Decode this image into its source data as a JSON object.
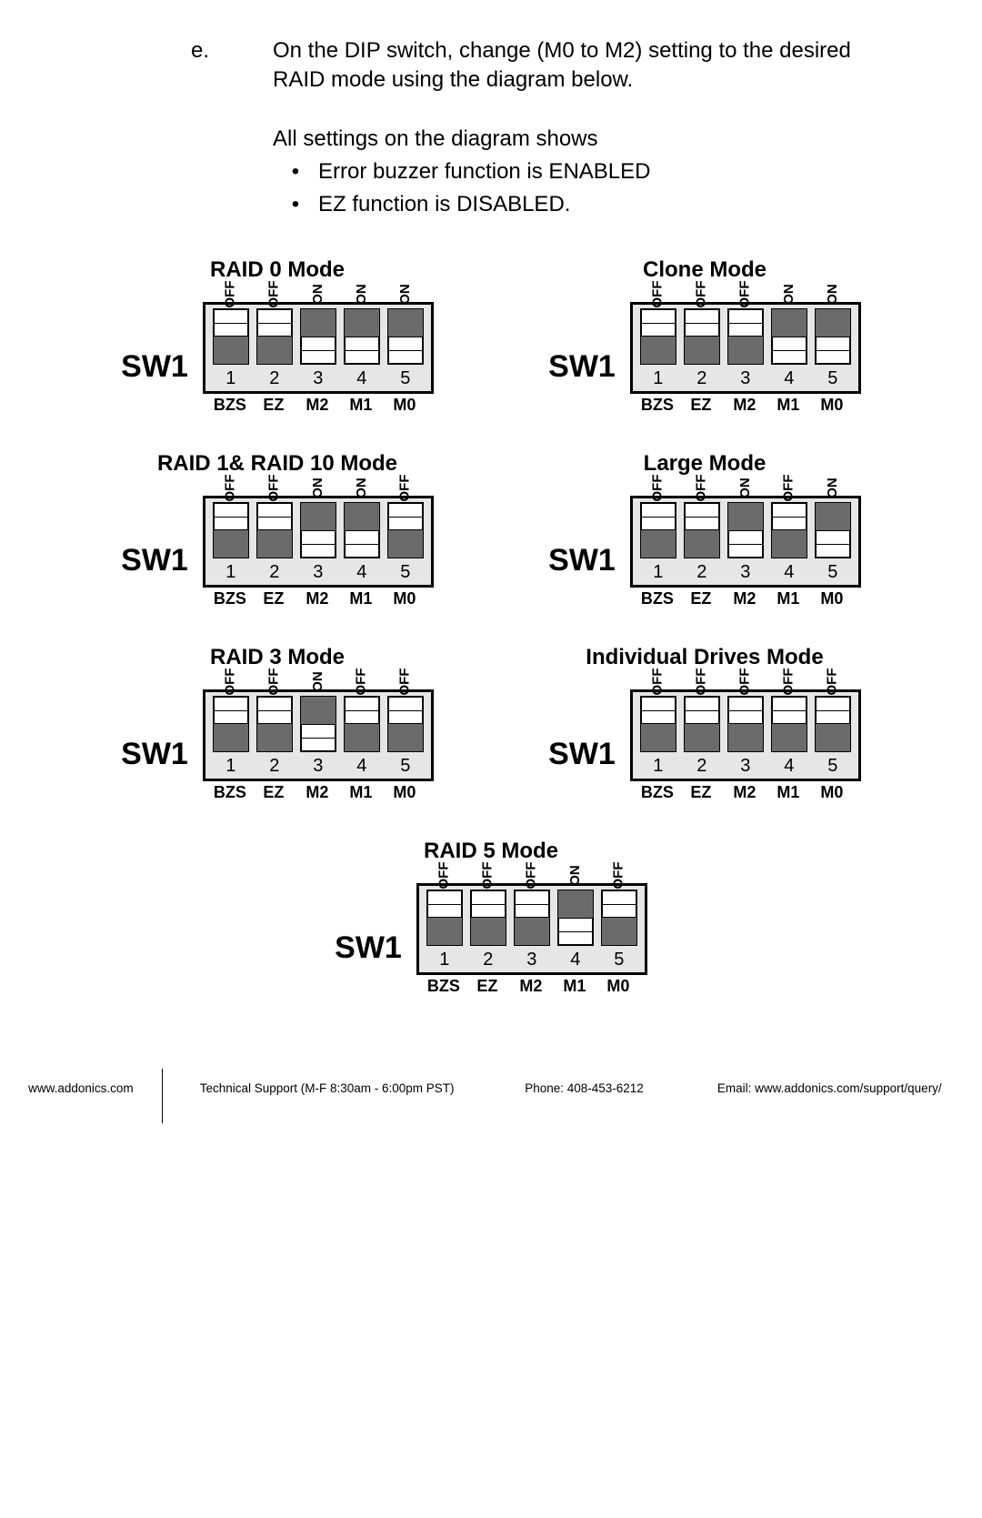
{
  "intro": {
    "bullet": "e.",
    "line1": "On the DIP switch, change (M0 to M2) setting to the desired RAID mode using the diagram below.",
    "heading2": "All settings on the diagram shows",
    "b1": "Error buzzer function is ENABLED",
    "b2": "EZ function is DISABLED."
  },
  "common": {
    "sw_label": "SW1",
    "pins": [
      "BZS",
      "EZ",
      "M2",
      "M1",
      "M0"
    ],
    "numbers": [
      "1",
      "2",
      "3",
      "4",
      "5"
    ]
  },
  "colors": {
    "frame_bg": "#e6e6e6",
    "dark_half": "#6b6b6b",
    "knob_bg": "#ffffff",
    "border": "#000000"
  },
  "diagrams": [
    {
      "title": "RAID 0 Mode",
      "states": [
        "OFF",
        "OFF",
        "ON",
        "ON",
        "ON"
      ]
    },
    {
      "title": "Clone Mode",
      "states": [
        "OFF",
        "OFF",
        "OFF",
        "ON",
        "ON"
      ]
    },
    {
      "title": "RAID 1& RAID 10 Mode",
      "states": [
        "OFF",
        "OFF",
        "ON",
        "ON",
        "OFF"
      ]
    },
    {
      "title": "Large Mode",
      "states": [
        "OFF",
        "OFF",
        "ON",
        "OFF",
        "ON"
      ]
    },
    {
      "title": "RAID 3 Mode",
      "states": [
        "OFF",
        "OFF",
        "ON",
        "OFF",
        "OFF"
      ]
    },
    {
      "title": "Individual Drives Mode",
      "states": [
        "OFF",
        "OFF",
        "OFF",
        "OFF",
        "OFF"
      ]
    },
    {
      "title": "RAID 5 Mode",
      "states": [
        "OFF",
        "OFF",
        "OFF",
        "ON",
        "OFF"
      ],
      "full": true
    }
  ],
  "footer": {
    "site": "www.addonics.com",
    "support": "Technical Support (M-F 8:30am - 6:00pm PST)",
    "phone": "Phone: 408-453-6212",
    "email": "Email: www.addonics.com/support/query/"
  }
}
